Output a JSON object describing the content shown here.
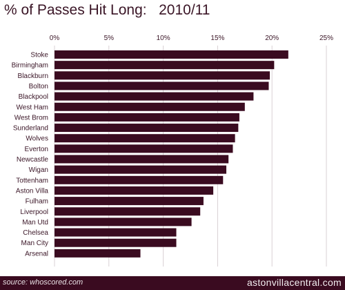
{
  "title": "% of Passes Hit Long:   2010/11",
  "footer": {
    "source": "source: whoscored.com",
    "brand": "astonvillacentral.com"
  },
  "colors": {
    "bar": "#3a0b20",
    "text": "#3a1526",
    "footer_bg": "#3a0b20"
  },
  "chart_data": {
    "type": "bar",
    "orientation": "horizontal",
    "title": "% of Passes Hit Long:   2010/11",
    "xlim": [
      0,
      25
    ],
    "x_ticks": [
      "0%",
      "5%",
      "10%",
      "15%",
      "20%",
      "25%"
    ],
    "grid": true,
    "categories": [
      "Stoke",
      "Birmingham",
      "Blackburn",
      "Bolton",
      "Blackpool",
      "West Ham",
      "West Brom",
      "Sunderland",
      "Wolves",
      "Everton",
      "Newcastle",
      "Wigan",
      "Tottenham",
      "Aston Villa",
      "Fulham",
      "Liverpool",
      "Man Utd",
      "Chelsea",
      "Man City",
      "Arsenal"
    ],
    "values": [
      21.5,
      20.2,
      19.8,
      19.7,
      18.3,
      17.5,
      17.0,
      16.9,
      16.6,
      16.4,
      16.0,
      15.8,
      15.5,
      14.6,
      13.7,
      13.4,
      12.6,
      11.2,
      11.2,
      7.9
    ]
  }
}
